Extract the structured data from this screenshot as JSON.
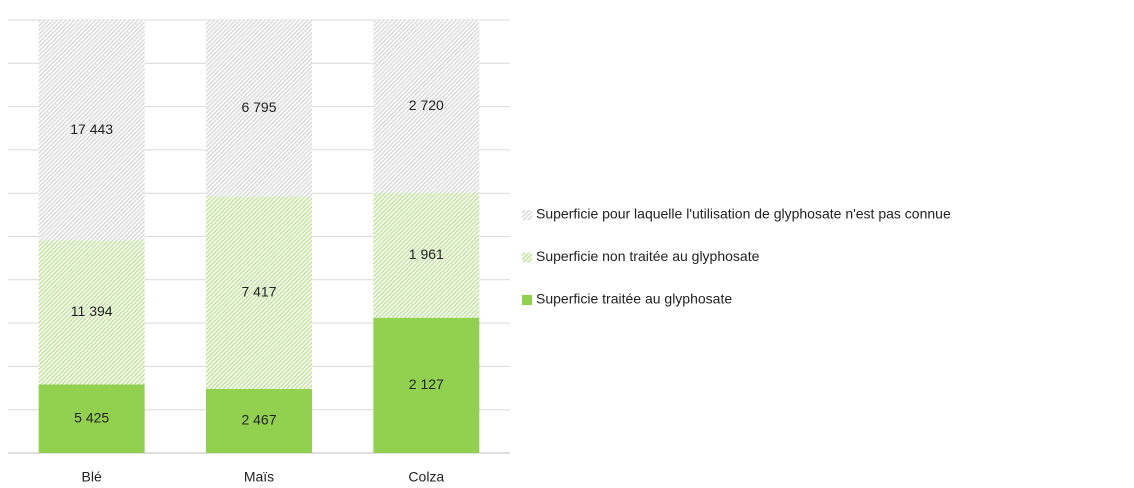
{
  "chart_data": {
    "type": "bar",
    "stacking": "percent",
    "categories": [
      "Blé",
      "Maïs",
      "Colza"
    ],
    "series": [
      {
        "name": "Superficie traitée au glyphosate",
        "color": "#92d050",
        "pattern": "solid",
        "values": [
          5425,
          2467,
          2127
        ],
        "value_labels": [
          "5 425",
          "2 467",
          "2 127"
        ]
      },
      {
        "name": "Superficie non traitée au glyphosate",
        "color": "#c4e3a0",
        "pattern": "hatch",
        "values": [
          11394,
          7417,
          1961
        ],
        "value_labels": [
          "11 394",
          "7 417",
          "1 961"
        ]
      },
      {
        "name": "Superficie pour laquelle l'utilisation de glyphosate n'est pas connue",
        "color": "#dcdcdc",
        "pattern": "hatch",
        "values": [
          17443,
          6795,
          2720
        ],
        "value_labels": [
          "17 443",
          "6 795",
          "2 720"
        ]
      }
    ],
    "ylim": [
      0,
      100
    ],
    "yticks": [
      0,
      10,
      20,
      30,
      40,
      50,
      60,
      70,
      80,
      90,
      100
    ],
    "grid": true,
    "legend": "right"
  }
}
